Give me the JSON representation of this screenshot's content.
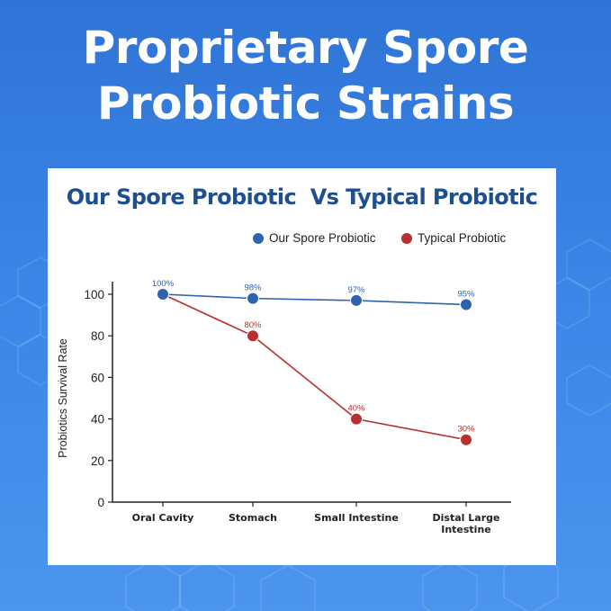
{
  "headline": {
    "line1": "Proprietary Spore",
    "line2": "Probiotic Strains"
  },
  "chart_data": {
    "type": "line",
    "title": "Our Spore Probiotic  Vs Typical Probiotic",
    "ylabel": "Probiotics Survival Rate",
    "xlabel": "",
    "categories": [
      "Oral Cavity",
      "Stomach",
      "Small Intestine",
      "Distal Large Intestine"
    ],
    "category_lines": [
      [
        "Oral Cavity"
      ],
      [
        "Stomach"
      ],
      [
        "Small Intestine"
      ],
      [
        "Distal Large",
        "Intestine"
      ]
    ],
    "ylim": [
      0,
      100
    ],
    "yticks": [
      0,
      20,
      40,
      60,
      80,
      100
    ],
    "grid": false,
    "legend_position": "top-right",
    "series": [
      {
        "name": "Our Spore Probiotic",
        "values": [
          100,
          98,
          97,
          95
        ],
        "labels": [
          "100%",
          "98%",
          "97%",
          "95%"
        ],
        "color": "#2e63ad"
      },
      {
        "name": "Typical Probiotic",
        "values": [
          100,
          80,
          40,
          30
        ],
        "labels": [
          "",
          "80%",
          "40%",
          "30%"
        ],
        "color": "#b5302e"
      }
    ]
  }
}
